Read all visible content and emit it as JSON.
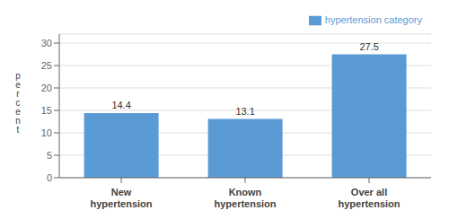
{
  "chart_data": {
    "type": "bar",
    "ylabel": "p\ne\nr\nc\ne\nn\nt",
    "categories": [
      "New\nhypertension",
      "Known\nhypertension",
      "Over all\nhypertension"
    ],
    "series": [
      {
        "name": "hypertension category",
        "color": "#5b9bd5",
        "values": [
          14.4,
          13.1,
          27.5
        ]
      }
    ],
    "ylim": [
      0,
      32
    ],
    "yticks": [
      0,
      5,
      10,
      15,
      20,
      25,
      30
    ],
    "grid": true,
    "legend": "right",
    "data_labels": true
  }
}
